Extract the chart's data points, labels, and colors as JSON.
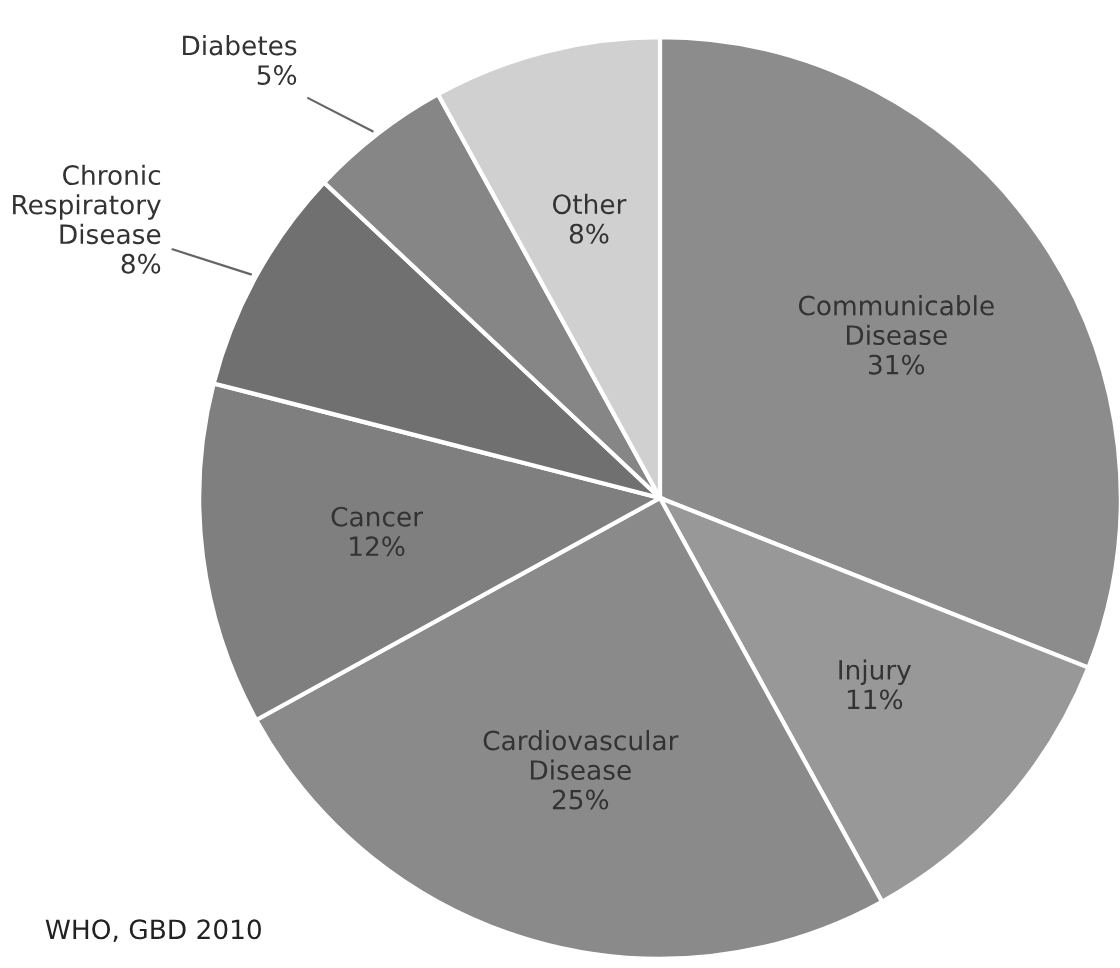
{
  "chart_data": {
    "type": "pie",
    "categories": [
      "Communicable\nDisease",
      "Injury",
      "Cardiovascular\nDisease",
      "Cancer",
      "Chronic\nRespiratory\nDisease",
      "Diabetes",
      "Other"
    ],
    "values": [
      31,
      11,
      25,
      12,
      8,
      5,
      8
    ],
    "value_labels": [
      "31%",
      "11%",
      "25%",
      "12%",
      "8%",
      "5%",
      "8%"
    ],
    "colors": [
      "#8c8c8c",
      "#989898",
      "#8a8a8a",
      "#7f7f7f",
      "#707070",
      "#868686",
      "#d0d0d0"
    ],
    "legend": false,
    "annotations": [
      "WHO, GBD 2010"
    ]
  }
}
